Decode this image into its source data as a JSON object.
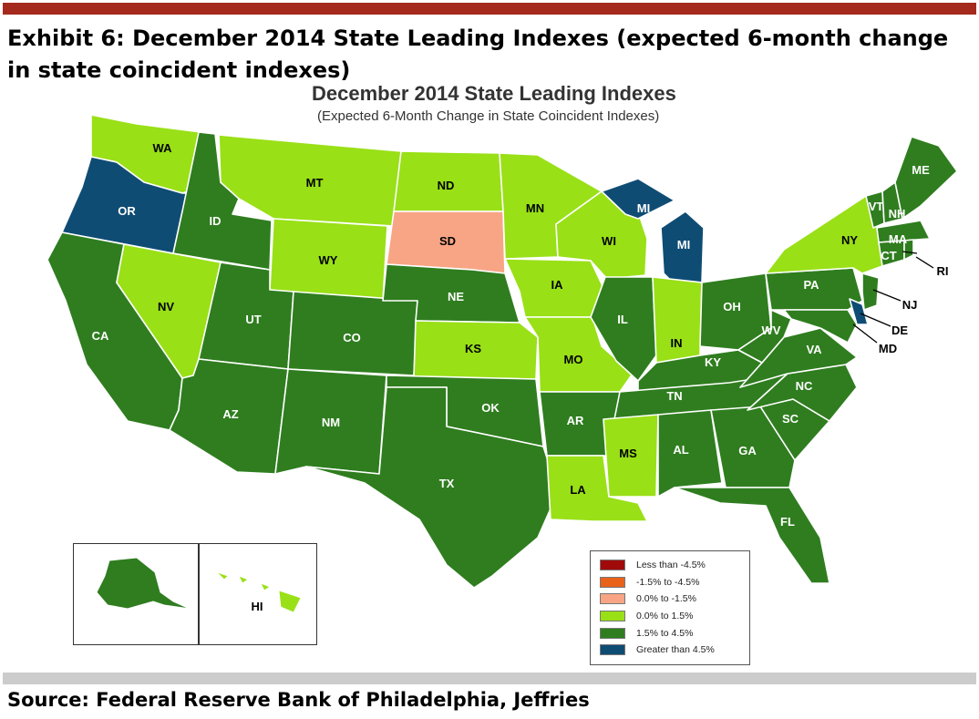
{
  "exhibit_title": "Exhibit 6: December 2014 State Leading Indexes (expected 6-month change in state coincident indexes)",
  "map_title": "December 2014 State Leading Indexes",
  "map_subtitle": "(Expected 6-Month Change in State Coincident Indexes)",
  "source": "Source: Federal Reserve Bank of Philadelphia, Jeffries",
  "colors": {
    "bar": "#a52a1e",
    "bottom_bar": "#cccccc",
    "lt_neg45": "#a10a0a",
    "neg15_neg45": "#e8621a",
    "0_neg15": "#f8a585",
    "0_15": "#99e017",
    "15_45": "#2f7d1f",
    "gt_45": "#0f4c74",
    "border": "#ffffff"
  },
  "legend": [
    {
      "label": "Less than -4.5%",
      "color_key": "lt_neg45"
    },
    {
      "label": "-1.5% to -4.5%",
      "color_key": "neg15_neg45"
    },
    {
      "label": "0.0% to -1.5%",
      "color_key": "0_neg15"
    },
    {
      "label": "0.0% to  1.5%",
      "color_key": "0_15"
    },
    {
      "label": "1.5% to  4.5%",
      "color_key": "15_45"
    },
    {
      "label": "Greater than 4.5%",
      "color_key": "gt_45"
    }
  ],
  "states": [
    {
      "abbr": "WA",
      "category": "0_15"
    },
    {
      "abbr": "OR",
      "category": "gt_45"
    },
    {
      "abbr": "CA",
      "category": "15_45"
    },
    {
      "abbr": "ID",
      "category": "15_45"
    },
    {
      "abbr": "NV",
      "category": "0_15"
    },
    {
      "abbr": "MT",
      "category": "0_15"
    },
    {
      "abbr": "WY",
      "category": "0_15"
    },
    {
      "abbr": "UT",
      "category": "15_45"
    },
    {
      "abbr": "AZ",
      "category": "15_45"
    },
    {
      "abbr": "CO",
      "category": "15_45"
    },
    {
      "abbr": "NM",
      "category": "15_45"
    },
    {
      "abbr": "ND",
      "category": "0_15"
    },
    {
      "abbr": "SD",
      "category": "0_neg15"
    },
    {
      "abbr": "NE",
      "category": "15_45"
    },
    {
      "abbr": "KS",
      "category": "0_15"
    },
    {
      "abbr": "OK",
      "category": "15_45"
    },
    {
      "abbr": "TX",
      "category": "15_45"
    },
    {
      "abbr": "MN",
      "category": "0_15"
    },
    {
      "abbr": "IA",
      "category": "0_15"
    },
    {
      "abbr": "MO",
      "category": "0_15"
    },
    {
      "abbr": "AR",
      "category": "15_45"
    },
    {
      "abbr": "LA",
      "category": "0_15"
    },
    {
      "abbr": "WI",
      "category": "0_15"
    },
    {
      "abbr": "IL",
      "category": "15_45"
    },
    {
      "abbr": "MI",
      "category": "gt_45"
    },
    {
      "abbr": "IN",
      "category": "0_15"
    },
    {
      "abbr": "OH",
      "category": "15_45"
    },
    {
      "abbr": "KY",
      "category": "15_45"
    },
    {
      "abbr": "TN",
      "category": "15_45"
    },
    {
      "abbr": "MS",
      "category": "0_15"
    },
    {
      "abbr": "AL",
      "category": "15_45"
    },
    {
      "abbr": "GA",
      "category": "15_45"
    },
    {
      "abbr": "FL",
      "category": "15_45"
    },
    {
      "abbr": "SC",
      "category": "15_45"
    },
    {
      "abbr": "NC",
      "category": "15_45"
    },
    {
      "abbr": "VA",
      "category": "15_45"
    },
    {
      "abbr": "WV",
      "category": "15_45"
    },
    {
      "abbr": "PA",
      "category": "15_45"
    },
    {
      "abbr": "NY",
      "category": "0_15"
    },
    {
      "abbr": "VT",
      "category": "15_45"
    },
    {
      "abbr": "NH",
      "category": "15_45"
    },
    {
      "abbr": "ME",
      "category": "15_45"
    },
    {
      "abbr": "MA",
      "category": "15_45"
    },
    {
      "abbr": "CT",
      "category": "15_45"
    },
    {
      "abbr": "RI",
      "category": "15_45"
    },
    {
      "abbr": "NJ",
      "category": "15_45"
    },
    {
      "abbr": "DE",
      "category": "gt_45"
    },
    {
      "abbr": "MD",
      "category": "15_45"
    },
    {
      "abbr": "AK",
      "category": "15_45"
    },
    {
      "abbr": "HI",
      "category": "0_15"
    }
  ]
}
